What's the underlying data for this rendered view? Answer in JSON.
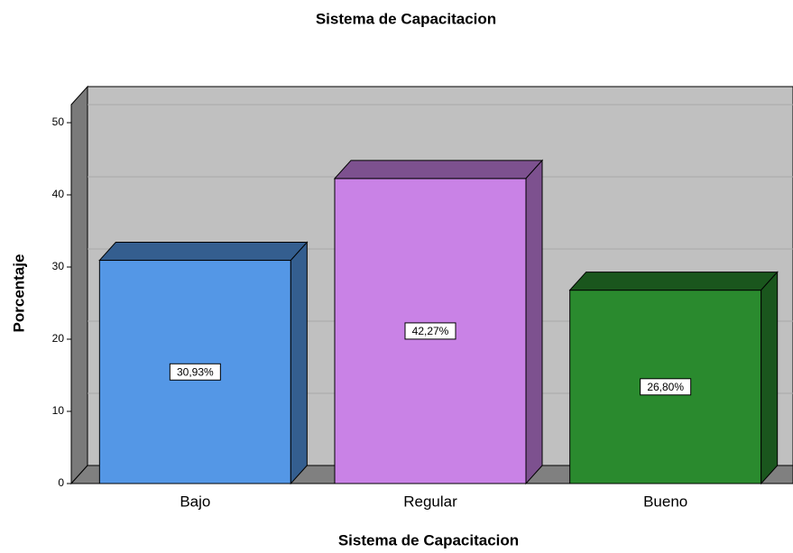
{
  "chart_data": {
    "type": "bar3d",
    "title": "Sistema de Capacitacion",
    "x_label": "Sistema de Capacitacion",
    "y_label": "Porcentaje",
    "categories": [
      "Bajo",
      "Regular",
      "Bueno"
    ],
    "values": [
      30.93,
      42.27,
      26.8
    ],
    "value_labels": [
      "30,93%",
      "42,27%",
      "26,80%"
    ],
    "colors": [
      "#5497e6",
      "#c982e6",
      "#2a8a2e"
    ],
    "ylim": [
      0,
      52.5
    ],
    "yticks": [
      0,
      10,
      20,
      30,
      40,
      50
    ],
    "grid": true
  }
}
